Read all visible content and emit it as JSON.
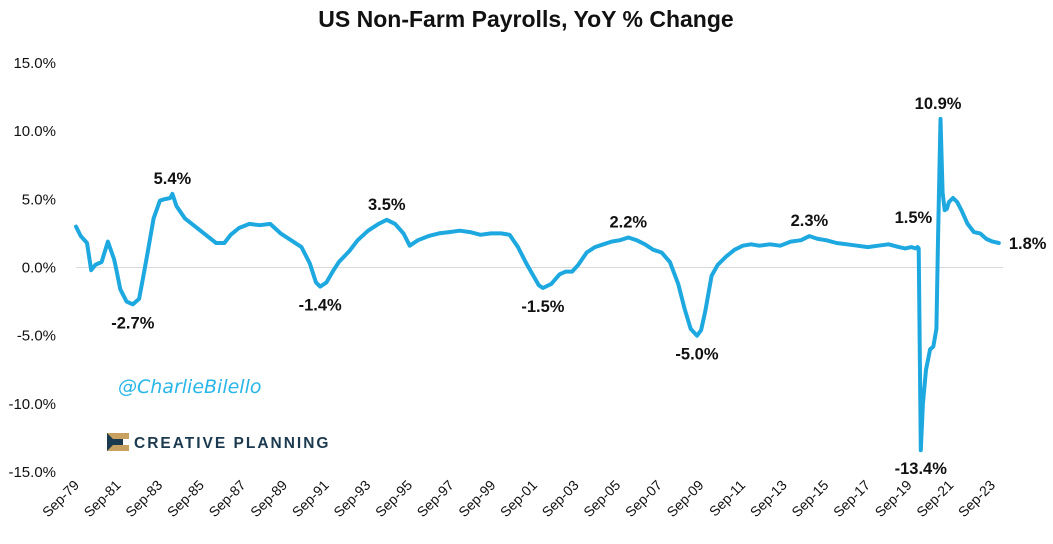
{
  "chart_data": {
    "type": "line",
    "title": "US Non-Farm Payrolls, YoY % Change",
    "xlabel": "",
    "ylabel": "",
    "ylim": [
      -15,
      15
    ],
    "yticks": [
      15,
      10,
      5,
      0,
      -5,
      -10,
      -15
    ],
    "ytick_labels": [
      "15.0%",
      "10.0%",
      "5.0%",
      "0.0%",
      "-5.0%",
      "-10.0%",
      "-15.0%"
    ],
    "xlim": [
      1979.67,
      2024.2
    ],
    "xticks": [
      1979.67,
      1981.67,
      1983.67,
      1985.67,
      1987.67,
      1989.67,
      1991.67,
      1993.67,
      1995.67,
      1997.67,
      1999.67,
      2001.67,
      2003.67,
      2005.67,
      2007.67,
      2009.67,
      2011.67,
      2013.67,
      2015.67,
      2017.67,
      2019.67,
      2021.67,
      2023.67
    ],
    "xtick_labels": [
      "Sep-79",
      "Sep-81",
      "Sep-83",
      "Sep-85",
      "Sep-87",
      "Sep-89",
      "Sep-91",
      "Sep-93",
      "Sep-95",
      "Sep-97",
      "Sep-99",
      "Sep-01",
      "Sep-03",
      "Sep-05",
      "Sep-07",
      "Sep-09",
      "Sep-11",
      "Sep-13",
      "Sep-15",
      "Sep-17",
      "Sep-19",
      "Sep-21",
      "Sep-23"
    ],
    "line_color": "#1ea8e0",
    "series": [
      {
        "name": "Non-Farm Payrolls YoY % Change",
        "x": [
          1979.67,
          1979.9,
          1980.2,
          1980.4,
          1980.6,
          1980.9,
          1981.2,
          1981.5,
          1981.6,
          1981.8,
          1982.1,
          1982.4,
          1982.7,
          1982.9,
          1983.1,
          1983.4,
          1983.7,
          1983.9,
          1984.2,
          1984.3,
          1984.5,
          1984.9,
          1985.4,
          1985.9,
          1986.4,
          1986.8,
          1987.1,
          1987.5,
          1988.0,
          1988.5,
          1989.0,
          1989.5,
          1990.0,
          1990.5,
          1990.9,
          1991.2,
          1991.4,
          1991.7,
          1992.0,
          1992.3,
          1992.8,
          1993.2,
          1993.7,
          1994.2,
          1994.6,
          1995.0,
          1995.4,
          1995.7,
          1996.1,
          1996.6,
          1997.1,
          1997.6,
          1998.1,
          1998.6,
          1999.1,
          1999.6,
          2000.1,
          2000.5,
          2000.9,
          2001.3,
          2001.6,
          2001.9,
          2002.1,
          2002.5,
          2002.9,
          2003.2,
          2003.5,
          2003.8,
          2004.2,
          2004.6,
          2005.0,
          2005.4,
          2005.8,
          2006.2,
          2006.6,
          2007.0,
          2007.4,
          2007.8,
          2008.2,
          2008.6,
          2008.9,
          2009.2,
          2009.5,
          2009.7,
          2009.9,
          2010.2,
          2010.5,
          2010.9,
          2011.3,
          2011.7,
          2012.1,
          2012.5,
          2013.0,
          2013.5,
          2014.0,
          2014.5,
          2014.9,
          2015.3,
          2015.7,
          2016.2,
          2016.7,
          2017.2,
          2017.7,
          2018.2,
          2018.7,
          2019.2,
          2019.5,
          2019.8,
          2020.0,
          2020.1,
          2020.15,
          2020.25,
          2020.35,
          2020.5,
          2020.7,
          2020.85,
          2021.0,
          2021.08,
          2021.2,
          2021.3,
          2021.4,
          2021.5,
          2021.6,
          2021.8,
          2022.0,
          2022.2,
          2022.5,
          2022.8,
          2023.1,
          2023.4,
          2023.7,
          2024.0
        ],
        "y": [
          3.0,
          2.3,
          1.8,
          -0.2,
          0.2,
          0.4,
          1.9,
          0.6,
          -0.1,
          -1.6,
          -2.5,
          -2.7,
          -2.3,
          -0.7,
          1.0,
          3.6,
          4.9,
          5.0,
          5.1,
          5.4,
          4.5,
          3.6,
          3.0,
          2.4,
          1.8,
          1.8,
          2.4,
          2.9,
          3.2,
          3.1,
          3.2,
          2.5,
          2.0,
          1.5,
          0.3,
          -1.1,
          -1.4,
          -1.1,
          -0.3,
          0.4,
          1.2,
          2.0,
          2.7,
          3.2,
          3.5,
          3.2,
          2.5,
          1.6,
          2.0,
          2.3,
          2.5,
          2.6,
          2.7,
          2.6,
          2.4,
          2.5,
          2.5,
          2.4,
          1.5,
          0.3,
          -0.5,
          -1.3,
          -1.5,
          -1.2,
          -0.5,
          -0.3,
          -0.3,
          0.2,
          1.1,
          1.5,
          1.7,
          1.9,
          2.0,
          2.2,
          2.0,
          1.7,
          1.3,
          1.1,
          0.4,
          -1.2,
          -3.0,
          -4.5,
          -5.0,
          -4.6,
          -3.2,
          -0.6,
          0.2,
          0.8,
          1.3,
          1.6,
          1.7,
          1.6,
          1.7,
          1.6,
          1.9,
          2.0,
          2.3,
          2.1,
          2.0,
          1.8,
          1.7,
          1.6,
          1.5,
          1.6,
          1.7,
          1.5,
          1.4,
          1.5,
          1.4,
          1.5,
          1.4,
          -13.4,
          -10.0,
          -7.5,
          -6.0,
          -5.8,
          -4.5,
          2.0,
          10.9,
          5.5,
          4.2,
          4.3,
          4.8,
          5.1,
          4.8,
          4.2,
          3.2,
          2.6,
          2.5,
          2.1,
          1.9,
          1.8
        ]
      }
    ],
    "annotations": [
      {
        "text": "5.4%",
        "x": 1984.3,
        "y": 5.4
      },
      {
        "text": "-2.7%",
        "x": 1982.4,
        "y": -2.7
      },
      {
        "text": "-1.4%",
        "x": 1991.4,
        "y": -1.4
      },
      {
        "text": "3.5%",
        "x": 1994.6,
        "y": 3.5
      },
      {
        "text": "-1.5%",
        "x": 2002.1,
        "y": -1.5
      },
      {
        "text": "2.2%",
        "x": 2006.2,
        "y": 2.2
      },
      {
        "text": "-5.0%",
        "x": 2009.5,
        "y": -5.0
      },
      {
        "text": "2.3%",
        "x": 2014.9,
        "y": 2.3
      },
      {
        "text": "1.5%",
        "x": 2019.8,
        "y": 1.5
      },
      {
        "text": "-13.4%",
        "x": 2020.25,
        "y": -13.4
      },
      {
        "text": "10.9%",
        "x": 2021.08,
        "y": 10.9
      },
      {
        "text": "1.8%",
        "x": 2024.0,
        "y": 1.8
      }
    ]
  },
  "watermark": {
    "handle": "@CharlieBilello",
    "handle_color": "#29b6e8",
    "brand": "CREATIVE PLANNING",
    "brand_color": "#1c3a4f"
  }
}
